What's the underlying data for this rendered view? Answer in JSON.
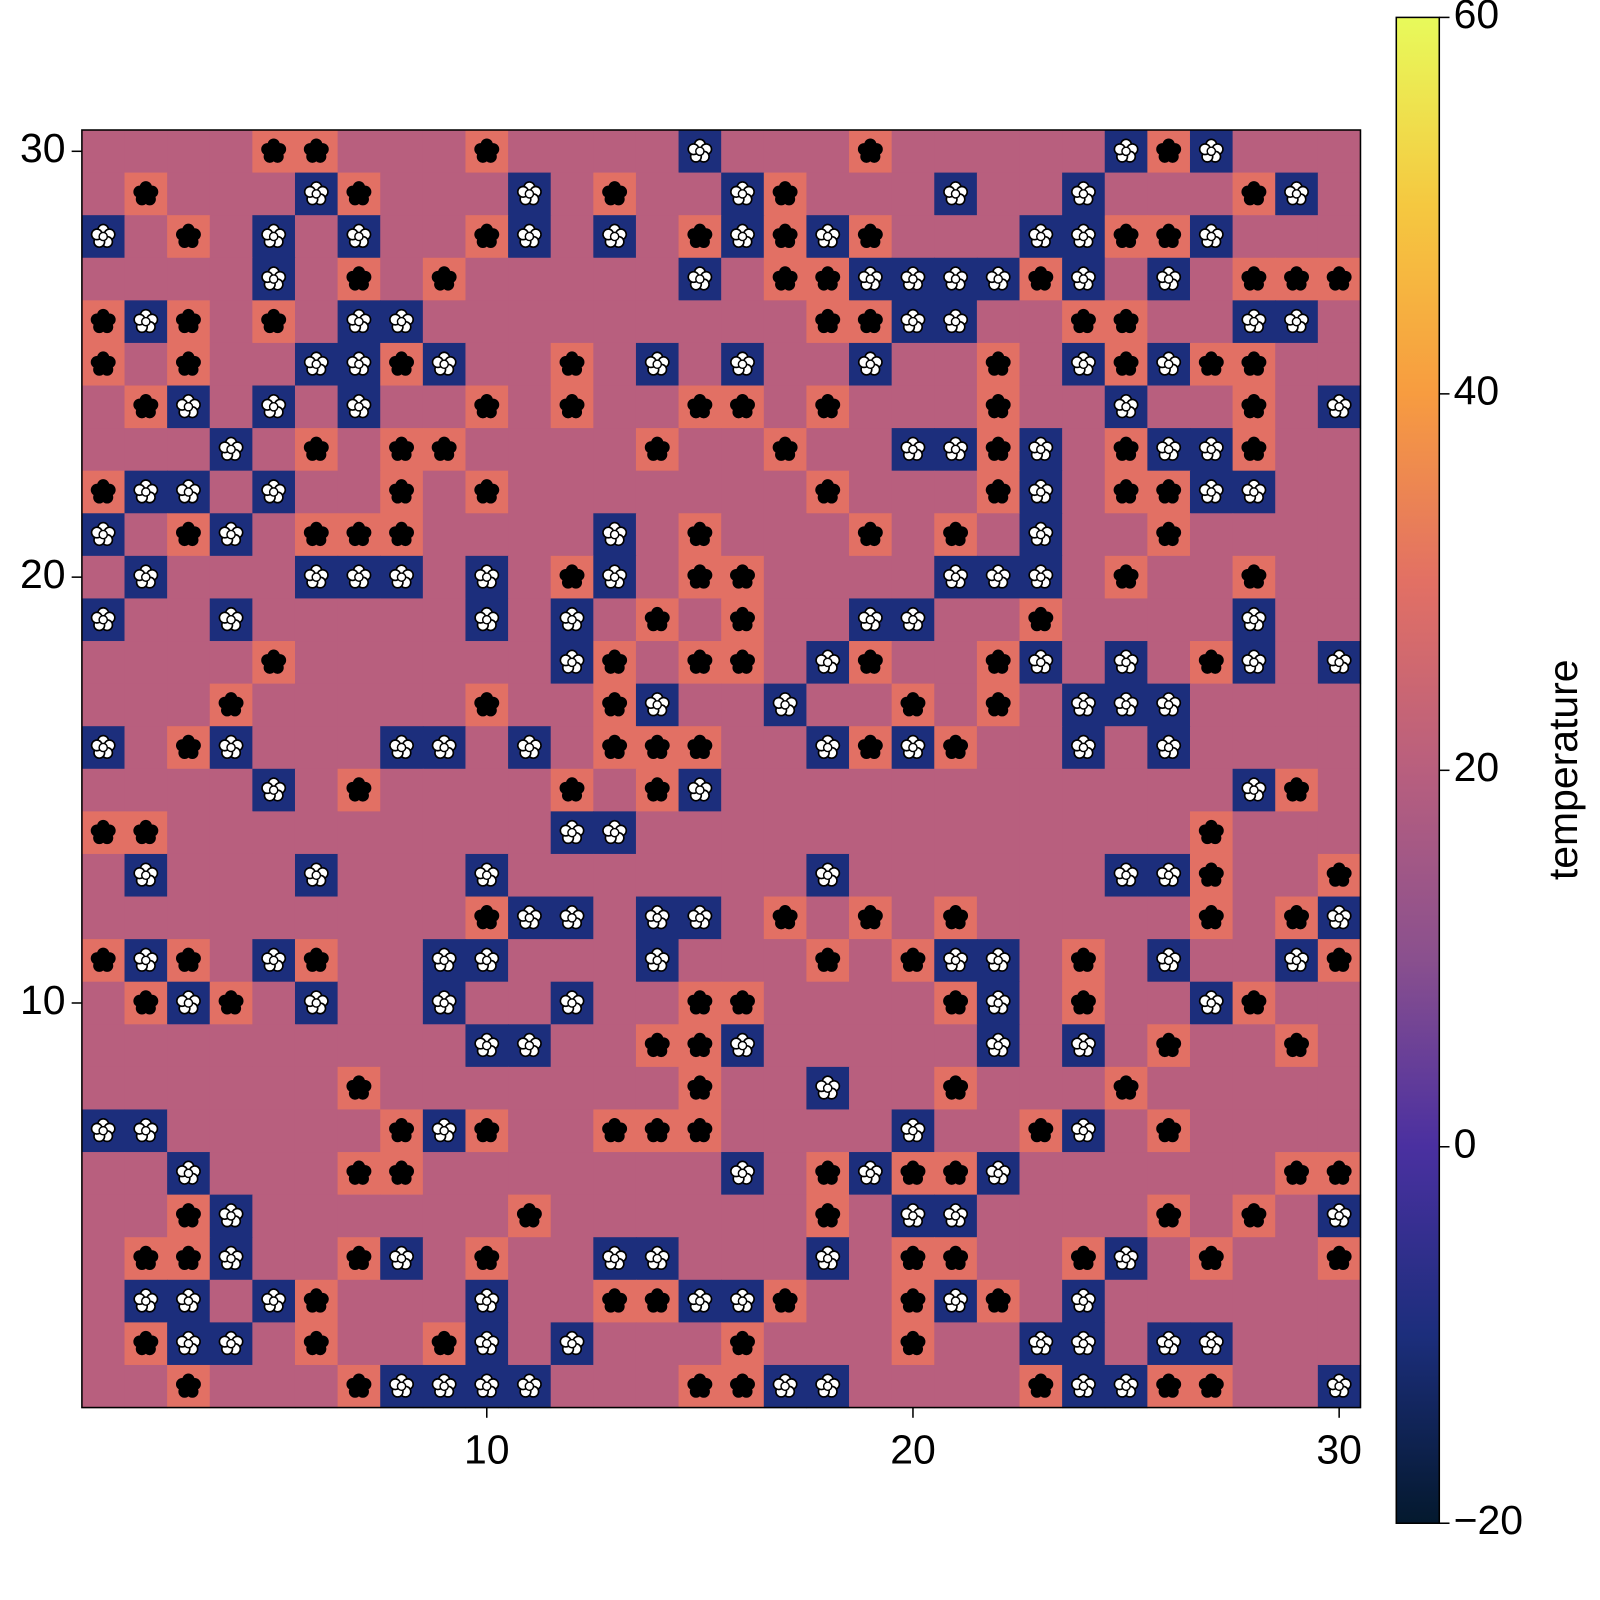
{
  "chart_data": {
    "type": "heatmap",
    "x": [
      1,
      2,
      3,
      4,
      5,
      6,
      7,
      8,
      9,
      10,
      11,
      12,
      13,
      14,
      15,
      16,
      17,
      18,
      19,
      20,
      21,
      22,
      23,
      24,
      25,
      26,
      27,
      28,
      29,
      30
    ],
    "y": [
      30,
      29,
      28,
      27,
      26,
      25,
      24,
      23,
      22,
      21,
      20,
      19,
      18,
      17,
      16,
      15,
      14,
      13,
      12,
      11,
      10,
      9,
      8,
      7,
      6,
      5,
      4,
      3,
      2,
      1
    ],
    "xlim": [
      0.5,
      30.5
    ],
    "ylim": [
      0.5,
      30.5
    ],
    "xticks": [
      10,
      20,
      30
    ],
    "yticks": [
      10,
      20,
      30
    ],
    "z": [
      [
        20,
        20,
        20,
        20,
        30,
        30,
        20,
        20,
        20,
        30,
        20,
        20,
        20,
        20,
        -10,
        20,
        20,
        20,
        30,
        20,
        20,
        20,
        20,
        20,
        -10,
        30,
        -10,
        20,
        20,
        20
      ],
      [
        20,
        30,
        20,
        20,
        20,
        -10,
        30,
        20,
        20,
        20,
        -10,
        20,
        30,
        20,
        20,
        -10,
        30,
        20,
        20,
        20,
        -10,
        20,
        20,
        -10,
        20,
        20,
        20,
        30,
        -10,
        20
      ],
      [
        -10,
        20,
        30,
        20,
        -10,
        20,
        -10,
        20,
        20,
        30,
        -10,
        20,
        -10,
        20,
        30,
        -10,
        30,
        -10,
        30,
        20,
        20,
        20,
        -10,
        -10,
        30,
        30,
        -10,
        20,
        20,
        20
      ],
      [
        20,
        20,
        20,
        20,
        -10,
        20,
        30,
        20,
        30,
        20,
        20,
        20,
        20,
        20,
        -10,
        20,
        30,
        30,
        -10,
        -10,
        -10,
        -10,
        30,
        -10,
        20,
        -10,
        20,
        30,
        30,
        30
      ],
      [
        30,
        -10,
        30,
        20,
        30,
        20,
        -10,
        -10,
        20,
        20,
        20,
        20,
        20,
        20,
        20,
        20,
        20,
        30,
        30,
        -10,
        -10,
        20,
        20,
        30,
        30,
        20,
        20,
        -10,
        -10,
        20
      ],
      [
        30,
        20,
        30,
        20,
        20,
        -10,
        -10,
        30,
        -10,
        20,
        20,
        30,
        20,
        -10,
        20,
        -10,
        20,
        20,
        -10,
        20,
        20,
        30,
        20,
        -10,
        30,
        -10,
        30,
        30,
        20,
        20
      ],
      [
        20,
        30,
        -10,
        20,
        -10,
        20,
        -10,
        20,
        20,
        30,
        20,
        30,
        20,
        20,
        30,
        30,
        20,
        30,
        20,
        20,
        20,
        30,
        20,
        20,
        -10,
        20,
        20,
        30,
        20,
        -10
      ],
      [
        20,
        20,
        20,
        -10,
        20,
        30,
        20,
        30,
        30,
        20,
        20,
        20,
        20,
        30,
        20,
        20,
        30,
        20,
        20,
        -10,
        -10,
        30,
        -10,
        20,
        30,
        -10,
        -10,
        30,
        20,
        20
      ],
      [
        30,
        -10,
        -10,
        20,
        -10,
        20,
        20,
        30,
        20,
        30,
        20,
        20,
        20,
        20,
        20,
        20,
        20,
        30,
        20,
        20,
        20,
        30,
        -10,
        20,
        30,
        30,
        -10,
        -10,
        20,
        20
      ],
      [
        -10,
        20,
        30,
        -10,
        20,
        30,
        30,
        30,
        20,
        20,
        20,
        20,
        -10,
        20,
        30,
        20,
        20,
        20,
        30,
        20,
        30,
        20,
        -10,
        20,
        20,
        30,
        20,
        20,
        20,
        20
      ],
      [
        20,
        -10,
        20,
        20,
        20,
        -10,
        -10,
        -10,
        20,
        -10,
        20,
        30,
        -10,
        20,
        30,
        30,
        20,
        20,
        20,
        20,
        -10,
        -10,
        -10,
        20,
        30,
        20,
        20,
        30,
        20,
        20
      ],
      [
        -10,
        20,
        20,
        -10,
        20,
        20,
        20,
        20,
        20,
        -10,
        20,
        -10,
        20,
        30,
        20,
        30,
        20,
        20,
        -10,
        -10,
        20,
        20,
        30,
        20,
        20,
        20,
        20,
        -10,
        20,
        20
      ],
      [
        20,
        20,
        20,
        20,
        30,
        20,
        20,
        20,
        20,
        20,
        20,
        -10,
        30,
        20,
        30,
        30,
        20,
        -10,
        30,
        20,
        20,
        30,
        -10,
        20,
        -10,
        20,
        30,
        -10,
        20,
        -10
      ],
      [
        20,
        20,
        20,
        30,
        20,
        20,
        20,
        20,
        20,
        30,
        20,
        20,
        30,
        -10,
        20,
        20,
        -10,
        20,
        20,
        30,
        20,
        30,
        20,
        -10,
        -10,
        -10,
        20,
        20,
        20,
        20
      ],
      [
        -10,
        20,
        30,
        -10,
        20,
        20,
        20,
        -10,
        -10,
        20,
        -10,
        20,
        30,
        30,
        30,
        20,
        20,
        -10,
        30,
        -10,
        30,
        20,
        20,
        -10,
        20,
        -10,
        20,
        20,
        20,
        20
      ],
      [
        20,
        20,
        20,
        20,
        -10,
        20,
        30,
        20,
        20,
        20,
        20,
        30,
        20,
        30,
        -10,
        20,
        20,
        20,
        20,
        20,
        20,
        20,
        20,
        20,
        20,
        20,
        20,
        -10,
        30,
        20
      ],
      [
        30,
        30,
        20,
        20,
        20,
        20,
        20,
        20,
        20,
        20,
        20,
        -10,
        -10,
        20,
        20,
        20,
        20,
        20,
        20,
        20,
        20,
        20,
        20,
        20,
        20,
        20,
        30,
        20,
        20,
        20
      ],
      [
        20,
        -10,
        20,
        20,
        20,
        -10,
        20,
        20,
        20,
        -10,
        20,
        20,
        20,
        20,
        20,
        20,
        20,
        -10,
        20,
        20,
        20,
        20,
        20,
        20,
        -10,
        -10,
        30,
        20,
        20,
        30
      ],
      [
        20,
        20,
        20,
        20,
        20,
        20,
        20,
        20,
        20,
        30,
        -10,
        -10,
        20,
        -10,
        -10,
        20,
        30,
        20,
        30,
        20,
        30,
        20,
        20,
        20,
        20,
        20,
        30,
        20,
        30,
        -10
      ],
      [
        30,
        -10,
        30,
        20,
        -10,
        30,
        20,
        20,
        -10,
        -10,
        20,
        20,
        20,
        -10,
        20,
        20,
        20,
        30,
        20,
        30,
        -10,
        -10,
        20,
        30,
        20,
        -10,
        20,
        20,
        -10,
        30
      ],
      [
        20,
        30,
        -10,
        30,
        20,
        -10,
        20,
        20,
        -10,
        20,
        20,
        -10,
        20,
        20,
        30,
        30,
        20,
        20,
        20,
        20,
        30,
        -10,
        20,
        30,
        20,
        20,
        -10,
        30,
        20,
        20
      ],
      [
        20,
        20,
        20,
        20,
        20,
        20,
        20,
        20,
        20,
        -10,
        -10,
        20,
        20,
        30,
        30,
        -10,
        20,
        20,
        20,
        20,
        20,
        -10,
        20,
        -10,
        20,
        30,
        20,
        20,
        30,
        20
      ],
      [
        20,
        20,
        20,
        20,
        20,
        20,
        30,
        20,
        20,
        20,
        20,
        20,
        20,
        20,
        30,
        20,
        20,
        -10,
        20,
        20,
        30,
        20,
        20,
        20,
        30,
        20,
        20,
        20,
        20,
        20
      ],
      [
        -10,
        -10,
        20,
        20,
        20,
        20,
        20,
        30,
        -10,
        30,
        20,
        20,
        30,
        30,
        30,
        20,
        20,
        20,
        20,
        -10,
        20,
        20,
        30,
        -10,
        20,
        30,
        20,
        20,
        20,
        20
      ],
      [
        20,
        20,
        -10,
        20,
        20,
        20,
        30,
        30,
        20,
        20,
        20,
        20,
        20,
        20,
        20,
        -10,
        20,
        30,
        -10,
        30,
        30,
        -10,
        20,
        20,
        20,
        20,
        20,
        20,
        30,
        30
      ],
      [
        20,
        20,
        30,
        -10,
        20,
        20,
        20,
        20,
        20,
        20,
        30,
        20,
        20,
        20,
        20,
        20,
        20,
        30,
        20,
        -10,
        -10,
        20,
        20,
        20,
        20,
        30,
        20,
        30,
        20,
        -10
      ],
      [
        20,
        30,
        30,
        -10,
        20,
        20,
        30,
        -10,
        20,
        30,
        20,
        20,
        -10,
        -10,
        20,
        20,
        20,
        -10,
        20,
        30,
        30,
        20,
        20,
        30,
        -10,
        20,
        30,
        20,
        20,
        30
      ],
      [
        20,
        -10,
        -10,
        20,
        -10,
        30,
        20,
        20,
        20,
        -10,
        20,
        20,
        30,
        30,
        -10,
        -10,
        30,
        20,
        20,
        30,
        -10,
        30,
        20,
        -10,
        20,
        20,
        20,
        20,
        20,
        20
      ],
      [
        20,
        30,
        -10,
        -10,
        20,
        30,
        20,
        20,
        30,
        -10,
        20,
        -10,
        20,
        20,
        20,
        30,
        20,
        20,
        20,
        30,
        20,
        20,
        -10,
        -10,
        20,
        -10,
        -10,
        20,
        20,
        20
      ],
      [
        20,
        20,
        30,
        20,
        20,
        20,
        30,
        -10,
        -10,
        -10,
        -10,
        20,
        20,
        20,
        30,
        30,
        -10,
        -10,
        20,
        20,
        20,
        20,
        30,
        -10,
        -10,
        30,
        30,
        20,
        20,
        -10
      ]
    ],
    "markers": [
      {
        "value": 30,
        "color": "#000000"
      },
      {
        "value": -10,
        "color": "#ffffff"
      }
    ],
    "colormap": [
      "#04192e",
      "#1c2e7c",
      "#4a30a0",
      "#8a508e",
      "#b85f7e",
      "#e27064",
      "#f79c40",
      "#f5c840",
      "#e8fa5b"
    ],
    "clim": [
      -20,
      60
    ],
    "cticks": [
      {
        "value": -20,
        "label": "−20"
      },
      0,
      20,
      40,
      60
    ],
    "colorbar_label": "temperature"
  }
}
